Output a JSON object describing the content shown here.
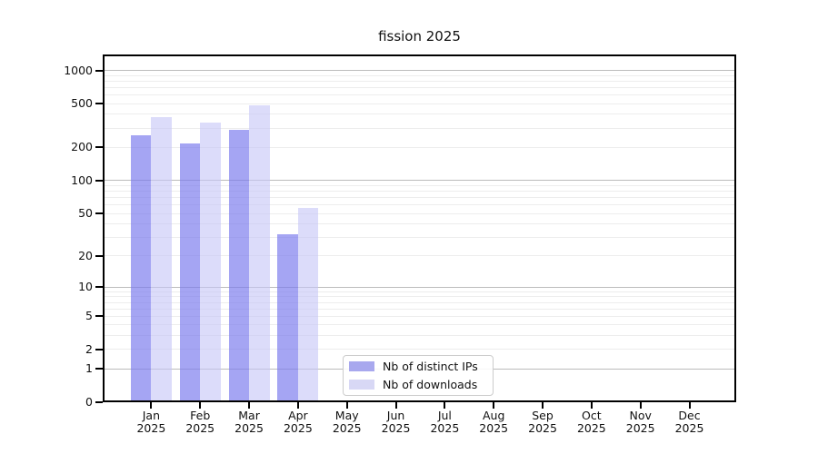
{
  "title": "fission 2025",
  "chart_data": {
    "type": "bar",
    "title": "fission 2025",
    "y_scale": "log10(value+1)",
    "grid": true,
    "legend_position": "lower center",
    "categories": [
      "Jan 2025",
      "Feb 2025",
      "Mar 2025",
      "Apr 2025",
      "May 2025",
      "Jun 2025",
      "Jul 2025",
      "Aug 2025",
      "Sep 2025",
      "Oct 2025",
      "Nov 2025",
      "Dec 2025"
    ],
    "series": [
      {
        "name": "Nb of distinct IPs",
        "legend_color": "#a8a8ee",
        "bar_color": "rgba(122,122,238,0.68)",
        "values": [
          260,
          219,
          287,
          32,
          0,
          0,
          0,
          0,
          0,
          0,
          0,
          0
        ]
      },
      {
        "name": "Nb of downloads",
        "legend_color": "#d8d8f5",
        "bar_color": "rgba(199,199,247,0.62)",
        "values": [
          377,
          340,
          485,
          56,
          0,
          0,
          0,
          0,
          0,
          0,
          0,
          0
        ]
      }
    ],
    "y_ticks": [
      0,
      1,
      2,
      5,
      10,
      20,
      50,
      100,
      200,
      500,
      1000
    ],
    "major_gridlines": [
      1,
      10,
      100,
      1000
    ],
    "minor_gridlines": [
      2,
      3,
      4,
      5,
      6,
      7,
      8,
      9,
      20,
      30,
      40,
      50,
      60,
      70,
      80,
      90,
      200,
      300,
      400,
      500,
      600,
      700,
      800,
      900
    ],
    "ylim": [
      0,
      1420
    ],
    "colors": {
      "gridline_major": "#bcbcbc",
      "gridline_minor": "#ededed",
      "axis": "#000000"
    }
  }
}
